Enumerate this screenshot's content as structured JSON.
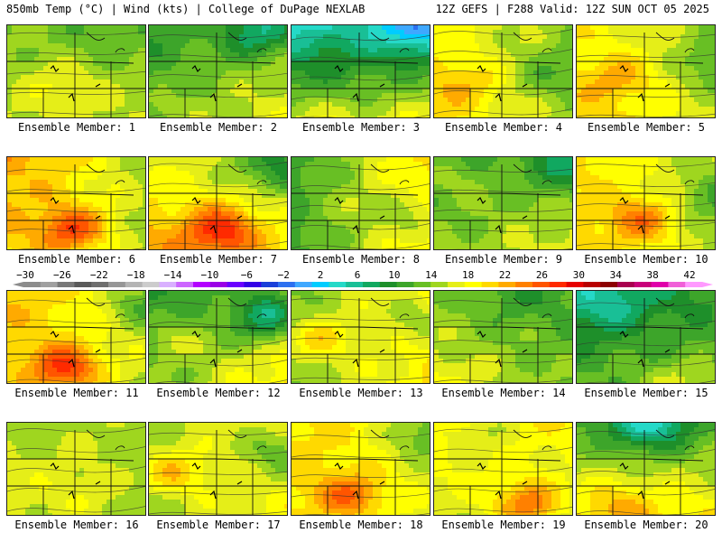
{
  "header": {
    "left": "850mb Temp (°C) | Wind (kts) | College of DuPage NEXLAB",
    "right": "12Z GEFS | F288 Valid: 12Z SUN OCT 05 2025"
  },
  "legend": {
    "ticks": [
      "−30",
      "−26",
      "−22",
      "−18",
      "−14",
      "−10",
      "−6",
      "−2",
      "2",
      "6",
      "10",
      "14",
      "18",
      "22",
      "26",
      "30",
      "34",
      "38",
      "42"
    ],
    "colors": [
      "#8c8c8c",
      "#a0a0a0",
      "#787878",
      "#5a5a5a",
      "#6e6e6e",
      "#969696",
      "#b4b4b4",
      "#cccccc",
      "#d9b0ff",
      "#cc66ff",
      "#b300ff",
      "#9a00e6",
      "#6a00ff",
      "#3300e6",
      "#1a3fd9",
      "#2d70f0",
      "#3fa8ff",
      "#00ccff",
      "#25d9c8",
      "#19bf96",
      "#11a860",
      "#1e8f2a",
      "#3da52a",
      "#68bf24",
      "#9fd61f",
      "#e5ee18",
      "#ffff00",
      "#ffd900",
      "#ffaa00",
      "#ff8000",
      "#ff5500",
      "#ff2a00",
      "#e60000",
      "#b80000",
      "#8c0000",
      "#a8004f",
      "#c8007a",
      "#e000aa",
      "#f060d8",
      "#ff99ff"
    ]
  },
  "members": [
    {
      "label": "Ensemble Member: 1",
      "base": 11,
      "dx": 0.0,
      "dy": 1.2,
      "hot": [
        [
          0.35,
          0.6,
          3
        ]
      ],
      "cold": [
        [
          0.7,
          0.1,
          2
        ]
      ]
    },
    {
      "label": "Ensemble Member: 2",
      "base": 10,
      "dx": 5.0,
      "dy": 1.5,
      "hot": [
        [
          0.05,
          0.9,
          2
        ]
      ],
      "cold": [
        [
          0.8,
          0.05,
          8
        ]
      ]
    },
    {
      "label": "Ensemble Member: 3",
      "base": 7,
      "dx": 3.0,
      "dy": 6.0,
      "hot": [
        [
          0.1,
          0.95,
          2
        ]
      ],
      "cold": [
        [
          0.9,
          0.0,
          8
        ]
      ]
    },
    {
      "label": "Ensemble Member: 4",
      "base": 13,
      "dx": -5.0,
      "dy": 0.5,
      "hot": [
        [
          0.2,
          0.6,
          4
        ]
      ],
      "cold": [
        [
          0.8,
          0.5,
          3
        ]
      ]
    },
    {
      "label": "Ensemble Member: 5",
      "base": 14,
      "dx": -4.0,
      "dy": 1.0,
      "hot": [
        [
          0.3,
          0.55,
          4
        ]
      ],
      "cold": [
        [
          0.95,
          0.4,
          4
        ]
      ]
    },
    {
      "label": "Ensemble Member: 6",
      "base": 15,
      "dx": -6.0,
      "dy": -1.0,
      "hot": [
        [
          0.45,
          0.75,
          9
        ]
      ],
      "cold": [
        [
          0.95,
          0.1,
          2
        ]
      ]
    },
    {
      "label": "Ensemble Member: 7",
      "base": 15,
      "dx": -3.0,
      "dy": 3.0,
      "hot": [
        [
          0.5,
          0.75,
          9
        ]
      ],
      "cold": [
        [
          0.9,
          0.1,
          6
        ]
      ]
    },
    {
      "label": "Ensemble Member: 8",
      "base": 12,
      "dx": 12.0,
      "dy": 0.0,
      "hot": [
        [
          0.1,
          0.5,
          2
        ]
      ],
      "cold": [
        [
          0.9,
          0.6,
          5
        ]
      ]
    },
    {
      "label": "Ensemble Member: 9",
      "base": 10,
      "dx": 3.0,
      "dy": 2.0,
      "hot": [
        [
          0.1,
          0.2,
          3
        ]
      ],
      "cold": [
        [
          0.95,
          0.1,
          6
        ]
      ]
    },
    {
      "label": "Ensemble Member: 10",
      "base": 14,
      "dx": -5.0,
      "dy": 0.0,
      "hot": [
        [
          0.45,
          0.65,
          7
        ]
      ],
      "cold": [
        [
          0.95,
          0.4,
          4
        ]
      ]
    },
    {
      "label": "Ensemble Member: 11",
      "base": 15,
      "dx": -4.0,
      "dy": -1.0,
      "hot": [
        [
          0.4,
          0.8,
          10
        ]
      ],
      "cold": [
        [
          0.95,
          0.1,
          6
        ]
      ]
    },
    {
      "label": "Ensemble Member: 12",
      "base": 11,
      "dx": 8.0,
      "dy": 2.0,
      "hot": [
        [
          0.1,
          0.5,
          4
        ]
      ],
      "cold": [
        [
          0.85,
          0.25,
          10
        ]
      ]
    },
    {
      "label": "Ensemble Member: 13",
      "base": 13,
      "dx": 7.0,
      "dy": 0.0,
      "hot": [
        [
          0.15,
          0.5,
          6
        ]
      ],
      "cold": [
        [
          0.95,
          0.3,
          5
        ]
      ]
    },
    {
      "label": "Ensemble Member: 14",
      "base": 10,
      "dx": -3.0,
      "dy": 1.5,
      "hot": [
        [
          0.1,
          0.9,
          2
        ]
      ],
      "cold": [
        [
          0.55,
          0.05,
          2
        ]
      ]
    },
    {
      "label": "Ensemble Member: 15",
      "base": 7,
      "dx": 2.0,
      "dy": 2.5,
      "hot": [
        [
          0.7,
          0.95,
          3
        ]
      ],
      "cold": [
        [
          0.2,
          0.1,
          4
        ]
      ]
    },
    {
      "label": "Ensemble Member: 16",
      "base": 12,
      "dx": -2.0,
      "dy": 0.0,
      "hot": [
        [
          0.5,
          0.7,
          2
        ]
      ],
      "cold": [
        [
          0.05,
          0.05,
          2
        ]
      ]
    },
    {
      "label": "Ensemble Member: 17",
      "base": 13,
      "dx": 4.0,
      "dy": 0.0,
      "hot": [
        [
          0.15,
          0.5,
          6
        ]
      ],
      "cold": [
        [
          0.95,
          0.3,
          6
        ]
      ]
    },
    {
      "label": "Ensemble Member: 18",
      "base": 15,
      "dx": -3.0,
      "dy": -0.5,
      "hot": [
        [
          0.4,
          0.75,
          7
        ]
      ],
      "cold": [
        [
          0.95,
          0.1,
          6
        ]
      ]
    },
    {
      "label": "Ensemble Member: 19",
      "base": 14,
      "dx": -1.0,
      "dy": -2.0,
      "hot": [
        [
          0.65,
          0.85,
          9
        ]
      ],
      "cold": [
        [
          0.3,
          0.05,
          4
        ]
      ]
    },
    {
      "label": "Ensemble Member: 20",
      "base": 12,
      "dx": 0.0,
      "dy": 4.0,
      "hot": [
        [
          0.3,
          0.85,
          4
        ]
      ],
      "cold": [
        [
          0.5,
          0.0,
          9
        ]
      ]
    }
  ]
}
